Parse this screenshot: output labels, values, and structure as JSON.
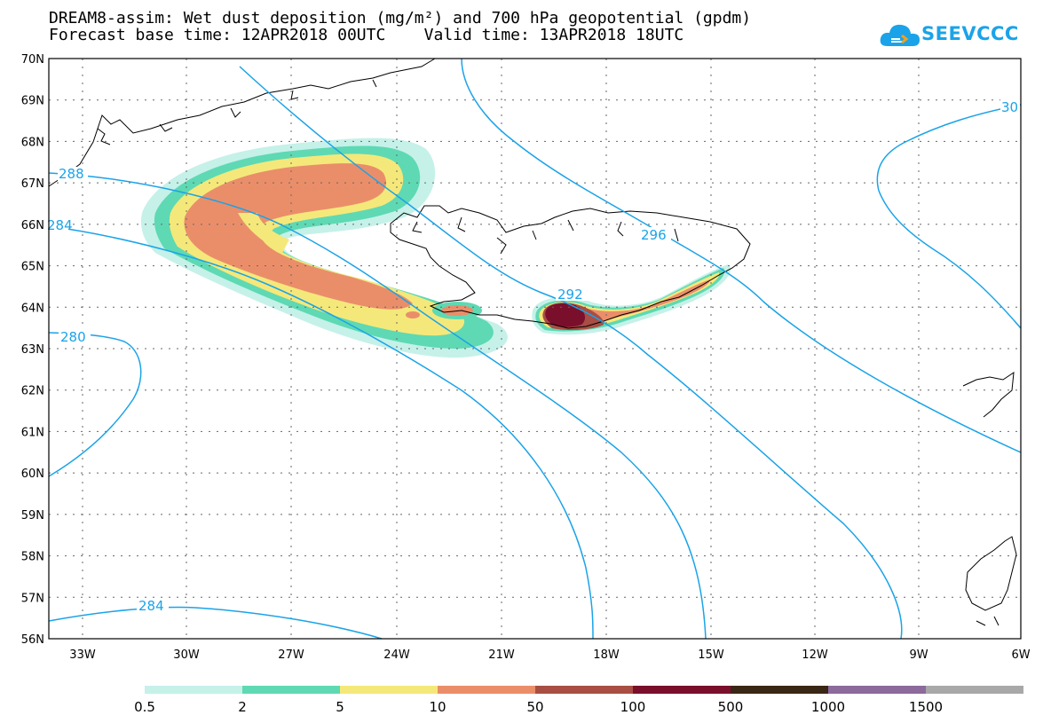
{
  "header": {
    "title_line1": "DREAM8-assim: Wet dust deposition (mg/m²) and 700 hPa geopotential (gpdm)",
    "title_line2": "Forecast base time: 12APR2018 00UTC    Valid time: 13APR2018 18UTC",
    "logo_text": "SEEVCCC"
  },
  "map": {
    "lat_labels": [
      "70N",
      "69N",
      "68N",
      "67N",
      "66N",
      "65N",
      "64N",
      "63N",
      "62N",
      "61N",
      "60N",
      "59N",
      "58N",
      "57N",
      "56N"
    ],
    "lon_labels": [
      "33W",
      "30W",
      "27W",
      "24W",
      "21W",
      "18W",
      "15W",
      "12W",
      "9W",
      "6W"
    ],
    "contour_labels": [
      "288",
      "284",
      "280",
      "284",
      "292",
      "296",
      "30"
    ],
    "colors": {
      "contour": "#1aa3e8",
      "coast": "#000000"
    }
  },
  "legend": {
    "bins": [
      {
        "color": "#c5f1e9"
      },
      {
        "color": "#5ed9b3"
      },
      {
        "color": "#f5e87a"
      },
      {
        "color": "#ea8e6a"
      },
      {
        "color": "#a84e44"
      },
      {
        "color": "#7a0f2c"
      },
      {
        "color": "#3a2614"
      },
      {
        "color": "#8c6a9c"
      },
      {
        "color": "#a8a8a8"
      }
    ],
    "tick_labels": [
      "0.5",
      "2",
      "5",
      "10",
      "50",
      "100",
      "500",
      "1000",
      "1500"
    ]
  }
}
